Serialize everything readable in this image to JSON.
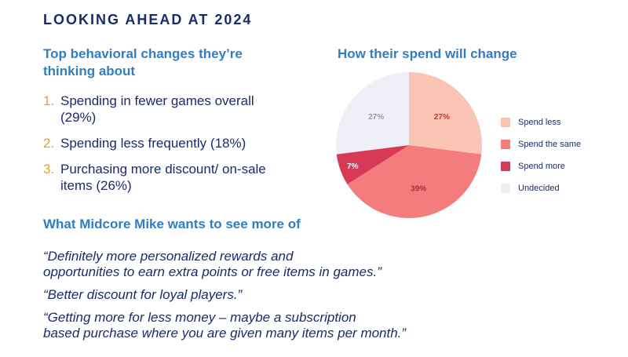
{
  "title": "LOOKING AHEAD AT 2024",
  "behaviors": {
    "title": "Top behavioral changes they’re thinking about",
    "items": [
      {
        "num": "1.",
        "text": "Spending in fewer games overall (29%)"
      },
      {
        "num": "2.",
        "text": "Spending less frequently (18%)"
      },
      {
        "num": "3.",
        "text": "Purchasing more discount/ on-sale items (26%)"
      }
    ]
  },
  "wants": {
    "title": "What Midcore Mike wants to see more of",
    "quotes": [
      "“Definitely more personalized rewards and\nopportunities to earn extra points or free items in games.”",
      "“Better discount for loyal players.”",
      "“Getting more for less money – maybe a subscription\nbased purchase where you are given many items per month.”"
    ]
  },
  "chart_data": {
    "type": "pie",
    "title": "How their spend will change",
    "legend_position": "right",
    "slices": [
      {
        "name": "Spend less",
        "value": 27,
        "label": "27%",
        "color": "#f9c4b4",
        "label_color": "#c0392b"
      },
      {
        "name": "Spend the same",
        "value": 39,
        "label": "39%",
        "color": "#f47c7c",
        "label_color": "#b02a3e"
      },
      {
        "name": "Spend more",
        "value": 7,
        "label": "7%",
        "color": "#d83a55",
        "label_color": "#ffffff"
      },
      {
        "name": "Undecided",
        "value": 27,
        "label": "27%",
        "color": "#eeeff7",
        "label_color": "#9a9aa8"
      }
    ]
  }
}
